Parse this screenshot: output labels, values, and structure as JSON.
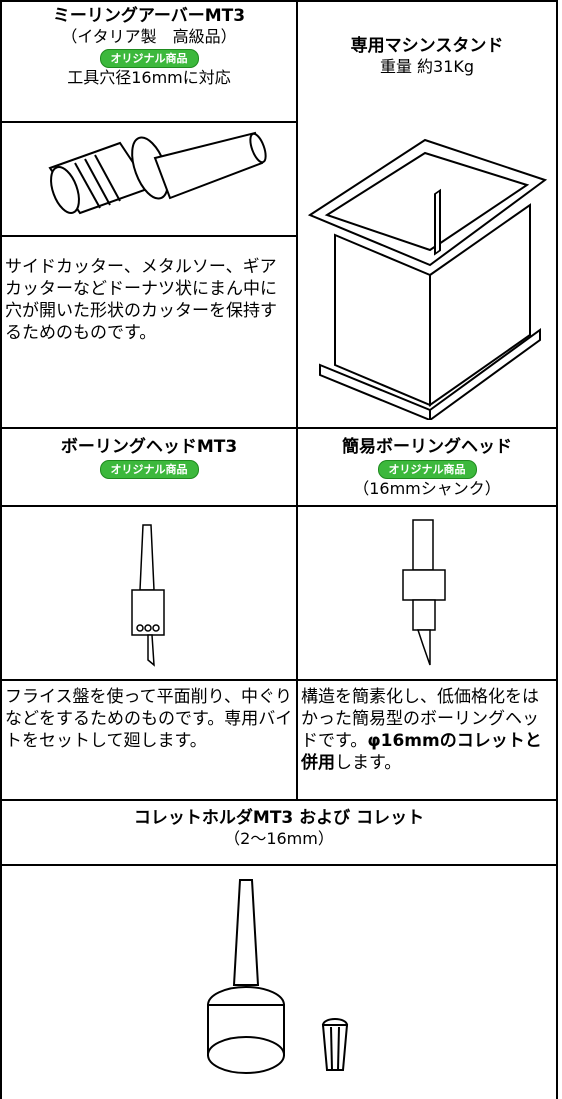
{
  "milling_arbor": {
    "title": "ミーリングアーバーMT3",
    "subtitle": "（イタリア製　高級品）",
    "badge": "オリジナル商品",
    "note": "工具穴径16mmに対応",
    "description": "サイドカッター、メタルソー、ギアカッターなどドーナツ状にまん中に穴が開いた形状のカッターを保持するためのものです。"
  },
  "machine_stand": {
    "title": "専用マシンスタンド",
    "note": "重量 約31Kg"
  },
  "boring_head": {
    "title": "ボーリングヘッドMT3",
    "badge": "オリジナル商品",
    "description": "フライス盤を使って平面削り、中ぐりなどをするためのものです。専用バイトをセットして廻します。"
  },
  "simple_boring_head": {
    "title": "簡易ボーリングヘッド",
    "badge": "オリジナル商品",
    "note": "（16mmシャンク）",
    "description": "構造を簡素化し、低価格化をはかった簡易型のボーリングヘッドです。",
    "emphasis": "φ16mmのコレットと併用",
    "description_end": "します。"
  },
  "collet_holder": {
    "title": "コレットホルダMT3 および コレット",
    "note": "（2〜16mm）"
  }
}
